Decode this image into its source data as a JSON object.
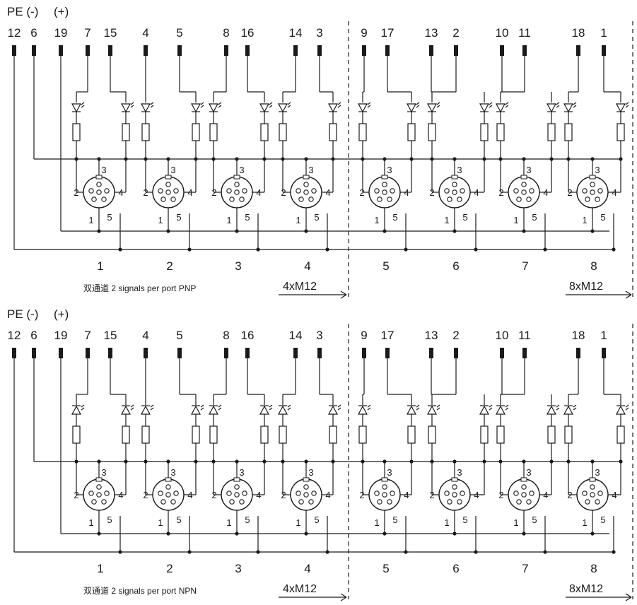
{
  "panels": [
    {
      "id": "pnp",
      "header_minus": "PE (-)",
      "header_plus": "(+)",
      "terminal_labels": [
        "12",
        "6",
        "19",
        "7",
        "15",
        "4",
        "5",
        "8",
        "16",
        "14",
        "3",
        "9",
        "17",
        "13",
        "2",
        "10",
        "11",
        "18",
        "1"
      ],
      "port_numbers": [
        "1",
        "2",
        "3",
        "4",
        "5",
        "6",
        "7",
        "8"
      ],
      "caption": "双通道 2 signals per port PNP",
      "module_4": "4xM12",
      "module_8": "8xM12",
      "m12_pins": [
        "1",
        "2",
        "3",
        "4",
        "5"
      ]
    },
    {
      "id": "npn",
      "header_minus": "PE (-)",
      "header_plus": "(+)",
      "terminal_labels": [
        "12",
        "6",
        "19",
        "7",
        "15",
        "4",
        "5",
        "8",
        "16",
        "14",
        "3",
        "9",
        "17",
        "13",
        "2",
        "10",
        "11",
        "18",
        "1"
      ],
      "port_numbers": [
        "1",
        "2",
        "3",
        "4",
        "5",
        "6",
        "7",
        "8"
      ],
      "caption": "双通道 2 signals per port NPN",
      "module_4": "4xM12",
      "module_8": "8xM12",
      "m12_pins": [
        "1",
        "2",
        "3",
        "4",
        "5"
      ]
    }
  ],
  "colors": {
    "line": "#1a1a1a",
    "background": "#ffffff"
  }
}
